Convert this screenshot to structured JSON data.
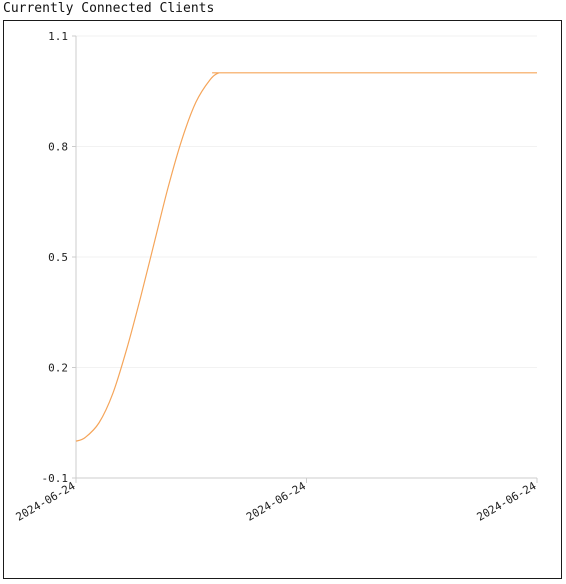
{
  "chart_data": {
    "type": "line",
    "title": "Currently Connected Clients",
    "xlabel": "",
    "ylabel": "",
    "y_ticks": [
      "1.1",
      "0.8",
      "0.5",
      "0.2",
      "-0.1"
    ],
    "y_tick_values": [
      1.1,
      0.8,
      0.5,
      0.2,
      -0.1
    ],
    "ylim": [
      -0.1,
      1.1
    ],
    "x_ticks": [
      "2024-06-24",
      "2024-06-24",
      "2024-06-24"
    ],
    "grid": true,
    "legend": "none",
    "series": [
      {
        "color": "#f5a55a",
        "x": [
          0,
          0.02,
          0.05,
          0.08,
          0.11,
          0.14,
          0.17,
          0.2,
          0.23,
          0.26,
          0.29,
          0.31,
          0.33,
          0.35,
          1.0
        ],
        "y": [
          0.0,
          0.01,
          0.05,
          0.13,
          0.25,
          0.39,
          0.54,
          0.69,
          0.82,
          0.92,
          0.98,
          1.0,
          1.0,
          1.0,
          1.0
        ]
      }
    ]
  },
  "colors": {
    "line": "#f5a55a",
    "axis": "#cccccc",
    "grid": "#f2f2f2",
    "frame": "#1a1a1a"
  }
}
